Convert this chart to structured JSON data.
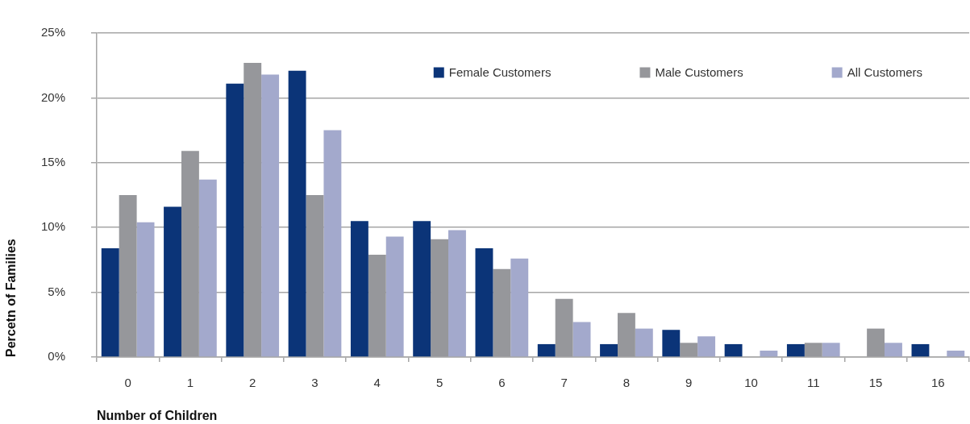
{
  "chart_data": {
    "type": "bar",
    "xlabel": "Number of Children",
    "ylabel": "Percetn of Families",
    "categories": [
      "0",
      "1",
      "2",
      "3",
      "4",
      "5",
      "6",
      "7",
      "8",
      "9",
      "10",
      "11",
      "15",
      "16"
    ],
    "series": [
      {
        "name": "Female Customers",
        "color": "#0b3478",
        "values": [
          8.4,
          11.6,
          21.1,
          22.1,
          10.5,
          10.5,
          8.4,
          1.0,
          1.0,
          2.1,
          1.0,
          1.0,
          0,
          1.0
        ]
      },
      {
        "name": "Male Customers",
        "color": "#96979b",
        "values": [
          12.5,
          15.9,
          22.7,
          12.5,
          7.9,
          9.1,
          6.8,
          4.5,
          3.4,
          1.1,
          0,
          1.1,
          2.2,
          0
        ]
      },
      {
        "name": "All Customers",
        "color": "#a3a9cc",
        "values": [
          10.4,
          13.7,
          21.8,
          17.5,
          9.3,
          9.8,
          7.6,
          2.7,
          2.2,
          1.6,
          0.5,
          1.1,
          1.1,
          0.5
        ]
      }
    ],
    "ylim": [
      0,
      25
    ],
    "yticks": [
      {
        "value": 0,
        "label": "0%"
      },
      {
        "value": 5,
        "label": "5%"
      },
      {
        "value": 10,
        "label": "10%"
      },
      {
        "value": 15,
        "label": "15%"
      },
      {
        "value": 20,
        "label": "20%"
      },
      {
        "value": 25,
        "label": "25%"
      }
    ],
    "grid": "y",
    "legend": "top right"
  }
}
